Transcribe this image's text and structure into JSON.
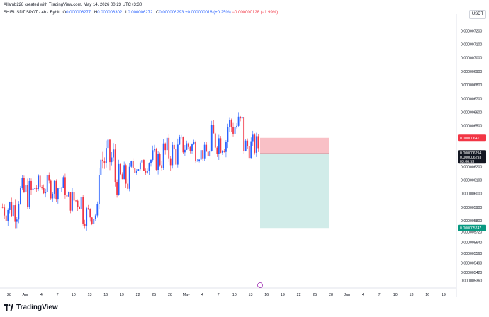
{
  "header": {
    "credit": "Allamb228 created with TradingView.com, May 14, 2026 00:23 UTC+3:30",
    "symbol": "SHIBUSDT SPOT · 4h · Bybit",
    "open_label": "O",
    "open_value": "0.000006277",
    "high_label": "H",
    "high_value": "0.000006302",
    "low_label": "L",
    "low_value": "0.000006272",
    "close_label": "C",
    "close_value": "0.000006293",
    "change_value": "+0.000000016 (+0.25%)",
    "change2_value": "−0.000000128 (−1.99%)",
    "currency": "USDT"
  },
  "footer": {
    "brand": "TradingView"
  },
  "colors": {
    "up": "#2962ff",
    "down": "#f23645",
    "stop_zone": "#f9c0c6",
    "target_zone": "#d1ece9",
    "stop_tag": "#f23645",
    "target_tag": "#089981",
    "last_price_tag": "#131722"
  },
  "chart_data": {
    "type": "candlestick",
    "title": "SHIBUSDT SPOT · 4h · Bybit",
    "y_axis": {
      "ticks": [
        "0.000007200",
        "0.000007100",
        "0.000007000",
        "0.000006900",
        "0.000006800",
        "0.000006700",
        "0.000006600",
        "0.000006500",
        "0.000006400",
        "0.000006300",
        "0.000006200",
        "0.000006100",
        "0.000006000",
        "0.000005900",
        "0.000005800",
        "0.000005720",
        "0.000005640",
        "0.000005560",
        "0.000005490",
        "0.000005420",
        "0.000005360"
      ],
      "ylim": [
        5.3e-06,
        7.28e-06
      ]
    },
    "x_axis": {
      "ticks": [
        "28",
        "Apr",
        "4",
        "7",
        "10",
        "13",
        "16",
        "19",
        "22",
        "25",
        "28",
        "May",
        "4",
        "7",
        "10",
        "13",
        "16",
        "19",
        "22",
        "25",
        "28",
        "Jun",
        "4",
        "7",
        "10",
        "13",
        "16",
        "19"
      ]
    },
    "series_summary": [
      {
        "date": "28",
        "low": 5.7e-06,
        "high": 6.1e-06,
        "close": 5.9e-06
      },
      {
        "date": "Apr",
        "low": 5.8e-06,
        "high": 6.2e-06,
        "close": 6e-06
      },
      {
        "date": "4",
        "low": 5.9e-06,
        "high": 6.2e-06,
        "close": 6.1e-06
      },
      {
        "date": "7",
        "low": 5.9e-06,
        "high": 6.2e-06,
        "close": 6e-06
      },
      {
        "date": "10",
        "low": 5.8e-06,
        "high": 6.1e-06,
        "close": 5.9e-06
      },
      {
        "date": "13",
        "low": 5.7e-06,
        "high": 6e-06,
        "close": 5.8e-06
      },
      {
        "date": "16",
        "low": 6e-06,
        "high": 6.5e-06,
        "close": 6.3e-06
      },
      {
        "date": "19",
        "low": 5.9e-06,
        "high": 6.3e-06,
        "close": 6e-06
      },
      {
        "date": "22",
        "low": 6.1e-06,
        "high": 6.3e-06,
        "close": 6.2e-06
      },
      {
        "date": "25",
        "low": 6.1e-06,
        "high": 6.4e-06,
        "close": 6.2e-06
      },
      {
        "date": "28",
        "low": 6.1e-06,
        "high": 6.5e-06,
        "close": 6.3e-06
      },
      {
        "date": "May",
        "low": 6.2e-06,
        "high": 6.5e-06,
        "close": 6.3e-06
      },
      {
        "date": "4",
        "low": 6.2e-06,
        "high": 6.4e-06,
        "close": 6.3e-06
      },
      {
        "date": "7",
        "low": 6.2e-06,
        "high": 6.6e-06,
        "close": 6.4e-06
      },
      {
        "date": "10",
        "low": 6.3e-06,
        "high": 6.7e-06,
        "close": 6.5e-06
      },
      {
        "date": "13",
        "low": 6.2e-06,
        "high": 6.5e-06,
        "close": 6.3e-06
      }
    ],
    "last_close": 6.293e-06,
    "position_tool": {
      "entry": 6.294e-06,
      "stop": 6.411e-06,
      "target": 5.747e-06,
      "stop_label": "0.000006411",
      "entry_label": "0.000006294",
      "last_label": "0.000006293",
      "countdown_label": "03:06:53",
      "target_label": "0.000005747"
    }
  }
}
